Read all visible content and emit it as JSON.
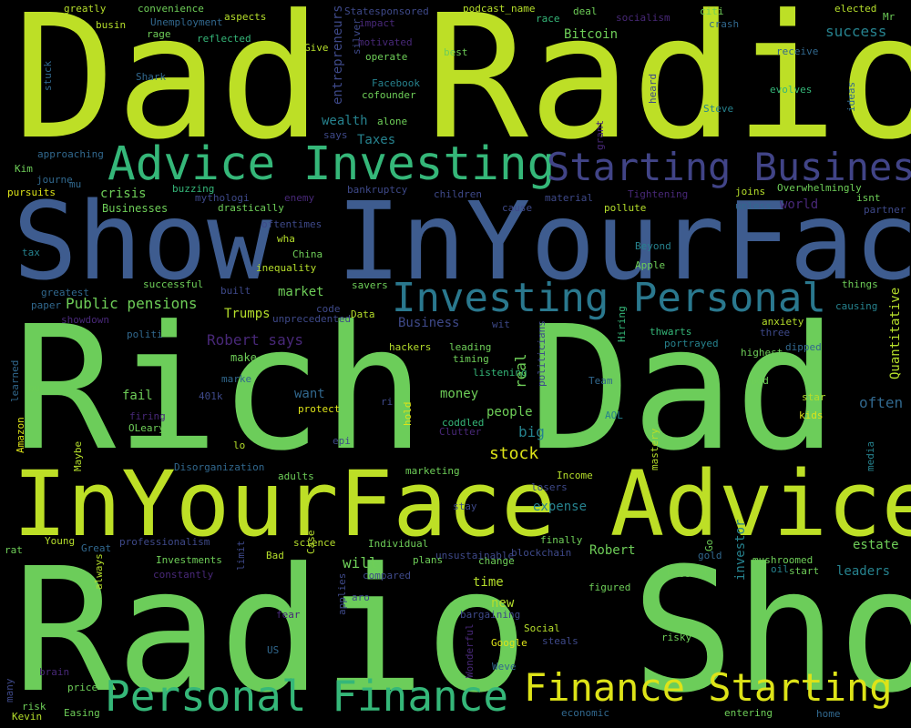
{
  "words": [
    {
      "text": "Dad Radio",
      "color": "#bddf26"
    },
    {
      "text": "Show InYourFace",
      "color": "#3e5c8f"
    },
    {
      "text": "Rich Dad",
      "color": "#6ccd5a"
    },
    {
      "text": "InYourFace Advice",
      "color": "#bddf26"
    },
    {
      "text": "Radio Show",
      "color": "#6ccd5a"
    },
    {
      "text": "Advice Investing",
      "color": "#35b779"
    },
    {
      "text": "Starting Business",
      "color": "#414487"
    },
    {
      "text": "Investing Personal",
      "color": "#2a788e"
    },
    {
      "text": "Personal Finance",
      "color": "#35b779"
    },
    {
      "text": "Finance Starting",
      "color": "#dde318"
    },
    {
      "text": "greatly",
      "color": "#b5de2b"
    },
    {
      "text": "convenience",
      "color": "#6ece58"
    },
    {
      "text": "busin",
      "color": "#b5de2b"
    },
    {
      "text": "Unemployment",
      "color": "#31688e"
    },
    {
      "text": "aspects",
      "color": "#b5de2b"
    },
    {
      "text": "rage",
      "color": "#6ece58"
    },
    {
      "text": "reflected",
      "color": "#35b779"
    },
    {
      "text": "Statesponsored",
      "color": "#3e4989"
    },
    {
      "text": "podcast_name",
      "color": "#b5de2b"
    },
    {
      "text": "race",
      "color": "#35b779"
    },
    {
      "text": "deal",
      "color": "#6ece58"
    },
    {
      "text": "socialism",
      "color": "#482878"
    },
    {
      "text": "citi",
      "color": "#6ece58"
    },
    {
      "text": "elected",
      "color": "#b5de2b"
    },
    {
      "text": "Mr",
      "color": "#6ece58"
    },
    {
      "text": "crash",
      "color": "#31688e"
    },
    {
      "text": "impact",
      "color": "#482878"
    },
    {
      "text": "motivated",
      "color": "#482878"
    },
    {
      "text": "operate",
      "color": "#6ece58"
    },
    {
      "text": "Give",
      "color": "#b5de2b"
    },
    {
      "text": "silver",
      "color": "#3e4989"
    },
    {
      "text": "entrepreneurs",
      "color": "#3e4989"
    },
    {
      "text": "best",
      "color": "#6ece58"
    },
    {
      "text": "Bitcoin",
      "color": "#6ece58"
    },
    {
      "text": "success",
      "color": "#26828e"
    },
    {
      "text": "receive",
      "color": "#31688e"
    },
    {
      "text": "stuck",
      "color": "#31688e"
    },
    {
      "text": "Shark",
      "color": "#31688e"
    },
    {
      "text": "Facebook",
      "color": "#26828e"
    },
    {
      "text": "cofounder",
      "color": "#6ece58"
    },
    {
      "text": "alone",
      "color": "#6ece58"
    },
    {
      "text": "heard",
      "color": "#3e4989"
    },
    {
      "text": "evolves",
      "color": "#35b779"
    },
    {
      "text": "ideas",
      "color": "#31688e"
    },
    {
      "text": "Steve",
      "color": "#26828e"
    },
    {
      "text": "wealth",
      "color": "#26828e"
    },
    {
      "text": "says",
      "color": "#3e4989"
    },
    {
      "text": "Taxes",
      "color": "#26828e"
    },
    {
      "text": "grant",
      "color": "#482878"
    },
    {
      "text": "approaching",
      "color": "#31688e"
    },
    {
      "text": "Kim",
      "color": "#6ece58"
    },
    {
      "text": "journe",
      "color": "#31688e"
    },
    {
      "text": "mu",
      "color": "#31688e"
    },
    {
      "text": "pursuits",
      "color": "#dde318"
    },
    {
      "text": "buzzing",
      "color": "#35b779"
    },
    {
      "text": "crisis",
      "color": "#6ece58"
    },
    {
      "text": "mythologi",
      "color": "#3e4989"
    },
    {
      "text": "enemy",
      "color": "#482878"
    },
    {
      "text": "bankruptcy",
      "color": "#3e4989"
    },
    {
      "text": "children",
      "color": "#3e4989"
    },
    {
      "text": "material",
      "color": "#3e4989"
    },
    {
      "text": "Tightening",
      "color": "#482878"
    },
    {
      "text": "joins",
      "color": "#b5de2b"
    },
    {
      "text": "Overwhelmingly",
      "color": "#6ece58"
    },
    {
      "text": "isnt",
      "color": "#6ece58"
    },
    {
      "text": "partner",
      "color": "#3e4989"
    },
    {
      "text": "Businesses",
      "color": "#6ece58"
    },
    {
      "text": "drastically",
      "color": "#6ece58"
    },
    {
      "text": "cause",
      "color": "#3e4989"
    },
    {
      "text": "pollute",
      "color": "#b5de2b"
    },
    {
      "text": "unless",
      "color": "#31688e"
    },
    {
      "text": "world",
      "color": "#482878"
    },
    {
      "text": "oftentimes",
      "color": "#3e4989"
    },
    {
      "text": "wha",
      "color": "#b5de2b"
    },
    {
      "text": "tax",
      "color": "#26828e"
    },
    {
      "text": "China",
      "color": "#6ece58"
    },
    {
      "text": "inequality",
      "color": "#b5de2b"
    },
    {
      "text": "Beyond",
      "color": "#26828e"
    },
    {
      "text": "Apple",
      "color": "#6ece58"
    },
    {
      "text": "greatest",
      "color": "#31688e"
    },
    {
      "text": "successful",
      "color": "#6ece58"
    },
    {
      "text": "built",
      "color": "#3e4989"
    },
    {
      "text": "market",
      "color": "#6ece58"
    },
    {
      "text": "savers",
      "color": "#6ece58"
    },
    {
      "text": "things",
      "color": "#6ece58"
    },
    {
      "text": "Quantitative",
      "color": "#b5de2b"
    },
    {
      "text": "paper",
      "color": "#31688e"
    },
    {
      "text": "showdown",
      "color": "#482878"
    },
    {
      "text": "Public pensions",
      "color": "#6ece58"
    },
    {
      "text": "Trumps",
      "color": "#b5de2b"
    },
    {
      "text": "code",
      "color": "#3e4989"
    },
    {
      "text": "unprecedented",
      "color": "#3e4989"
    },
    {
      "text": "Data",
      "color": "#b5de2b"
    },
    {
      "text": "Business",
      "color": "#3e4989"
    },
    {
      "text": "Hiring",
      "color": "#35b779"
    },
    {
      "text": "causing",
      "color": "#26828e"
    },
    {
      "text": "politi",
      "color": "#31688e"
    },
    {
      "text": "wit",
      "color": "#3e4989"
    },
    {
      "text": "anxiety",
      "color": "#b5de2b"
    },
    {
      "text": "three",
      "color": "#3e4989"
    },
    {
      "text": "thwarts",
      "color": "#35b779"
    },
    {
      "text": "portrayed",
      "color": "#26828e"
    },
    {
      "text": "Robert says",
      "color": "#482878"
    },
    {
      "text": "hackers",
      "color": "#b5de2b"
    },
    {
      "text": "leading",
      "color": "#6ece58"
    },
    {
      "text": "timing",
      "color": "#6ece58"
    },
    {
      "text": "listening",
      "color": "#35b779"
    },
    {
      "text": "highest",
      "color": "#6ece58"
    },
    {
      "text": "dipped",
      "color": "#31688e"
    },
    {
      "text": "make",
      "color": "#6ece58"
    },
    {
      "text": "marke",
      "color": "#31688e"
    },
    {
      "text": "real",
      "color": "#6ece58"
    },
    {
      "text": "politicians",
      "color": "#3e4989"
    },
    {
      "text": "learned",
      "color": "#31688e"
    },
    {
      "text": "bu",
      "color": "#6ece58"
    },
    {
      "text": "fail",
      "color": "#6ece58"
    },
    {
      "text": "want",
      "color": "#31688e"
    },
    {
      "text": "Team",
      "color": "#31688e"
    },
    {
      "text": "God",
      "color": "#6ece58"
    },
    {
      "text": "star",
      "color": "#b5de2b"
    },
    {
      "text": "often",
      "color": "#31688e"
    },
    {
      "text": "401k",
      "color": "#3e4989"
    },
    {
      "text": "money",
      "color": "#6ece58"
    },
    {
      "text": "ri",
      "color": "#3e4989"
    },
    {
      "text": "hold",
      "color": "#dde318"
    },
    {
      "text": "firing",
      "color": "#482878"
    },
    {
      "text": "protect",
      "color": "#dde318"
    },
    {
      "text": "people",
      "color": "#6ece58"
    },
    {
      "text": "OLeary",
      "color": "#6ece58"
    },
    {
      "text": "coddled",
      "color": "#35b779"
    },
    {
      "text": "AOL",
      "color": "#26828e"
    },
    {
      "text": "kids",
      "color": "#dde318"
    },
    {
      "text": "big",
      "color": "#26828e"
    },
    {
      "text": "Clutter",
      "color": "#482878"
    },
    {
      "text": "epi",
      "color": "#3e4989"
    },
    {
      "text": "lo",
      "color": "#b5de2b"
    },
    {
      "text": "stock",
      "color": "#dde318"
    },
    {
      "text": "Amazon",
      "color": "#dde318"
    },
    {
      "text": "Maybe",
      "color": "#b5de2b"
    },
    {
      "text": "Disorganization",
      "color": "#31688e"
    },
    {
      "text": "marketing",
      "color": "#6ece58"
    },
    {
      "text": "Income",
      "color": "#b5de2b"
    },
    {
      "text": "mastery",
      "color": "#b5de2b"
    },
    {
      "text": "media",
      "color": "#26828e"
    },
    {
      "text": "adults",
      "color": "#6ece58"
    },
    {
      "text": "losers",
      "color": "#3e4989"
    },
    {
      "text": "stay",
      "color": "#3e4989"
    },
    {
      "text": "expense",
      "color": "#26828e"
    },
    {
      "text": "Case",
      "color": "#b5de2b"
    },
    {
      "text": "rat",
      "color": "#6ece58"
    },
    {
      "text": "Young",
      "color": "#b5de2b"
    },
    {
      "text": "science",
      "color": "#b5de2b"
    },
    {
      "text": "Individual",
      "color": "#6ece58"
    },
    {
      "text": "finally",
      "color": "#6ece58"
    },
    {
      "text": "investor",
      "color": "#26828e"
    },
    {
      "text": "estate",
      "color": "#6ece58"
    },
    {
      "text": "Great",
      "color": "#31688e"
    },
    {
      "text": "professionalism",
      "color": "#3e4989"
    },
    {
      "text": "Bad",
      "color": "#b5de2b"
    },
    {
      "text": "blockchain",
      "color": "#3e4989"
    },
    {
      "text": "Robert",
      "color": "#6ece58"
    },
    {
      "text": "Go",
      "color": "#6ece58"
    },
    {
      "text": "gold",
      "color": "#31688e"
    },
    {
      "text": "Investments",
      "color": "#6ece58"
    },
    {
      "text": "limit",
      "color": "#3e4989"
    },
    {
      "text": "unsustainable",
      "color": "#3e4989"
    },
    {
      "text": "always",
      "color": "#b5de2b"
    },
    {
      "text": "constantly",
      "color": "#482878"
    },
    {
      "text": "will",
      "color": "#6ece58"
    },
    {
      "text": "plans",
      "color": "#6ece58"
    },
    {
      "text": "change",
      "color": "#6ece58"
    },
    {
      "text": "mushroomed",
      "color": "#6ece58"
    },
    {
      "text": "leaders",
      "color": "#26828e"
    },
    {
      "text": "oil",
      "color": "#26828e"
    },
    {
      "text": "start",
      "color": "#6ece58"
    },
    {
      "text": "biggest",
      "color": "#6ece58"
    },
    {
      "text": "compared",
      "color": "#3e4989"
    },
    {
      "text": "applies",
      "color": "#3e4989"
    },
    {
      "text": "aro",
      "color": "#3e4989"
    },
    {
      "text": "time",
      "color": "#b5de2b"
    },
    {
      "text": "figured",
      "color": "#6ece58"
    },
    {
      "text": "new",
      "color": "#b5de2b"
    },
    {
      "text": "fear",
      "color": "#482878"
    },
    {
      "text": "bargaining",
      "color": "#3e4989"
    },
    {
      "text": "Social",
      "color": "#b5de2b"
    },
    {
      "text": "risky",
      "color": "#6ece58"
    },
    {
      "text": "Google",
      "color": "#dde318"
    },
    {
      "text": "steals",
      "color": "#3e4989"
    },
    {
      "text": "US",
      "color": "#31688e"
    },
    {
      "text": "Wonderful",
      "color": "#482878"
    },
    {
      "text": "Weve",
      "color": "#31688e"
    },
    {
      "text": "many",
      "color": "#3e4989"
    },
    {
      "text": "brain",
      "color": "#482878"
    },
    {
      "text": "price",
      "color": "#6ece58"
    },
    {
      "text": "risk",
      "color": "#6ece58"
    },
    {
      "text": "Easing",
      "color": "#6ece58"
    },
    {
      "text": "Kevin",
      "color": "#b5de2b"
    },
    {
      "text": "economic",
      "color": "#31688e"
    },
    {
      "text": "entering",
      "color": "#6ece58"
    },
    {
      "text": "home",
      "color": "#31688e"
    }
  ]
}
